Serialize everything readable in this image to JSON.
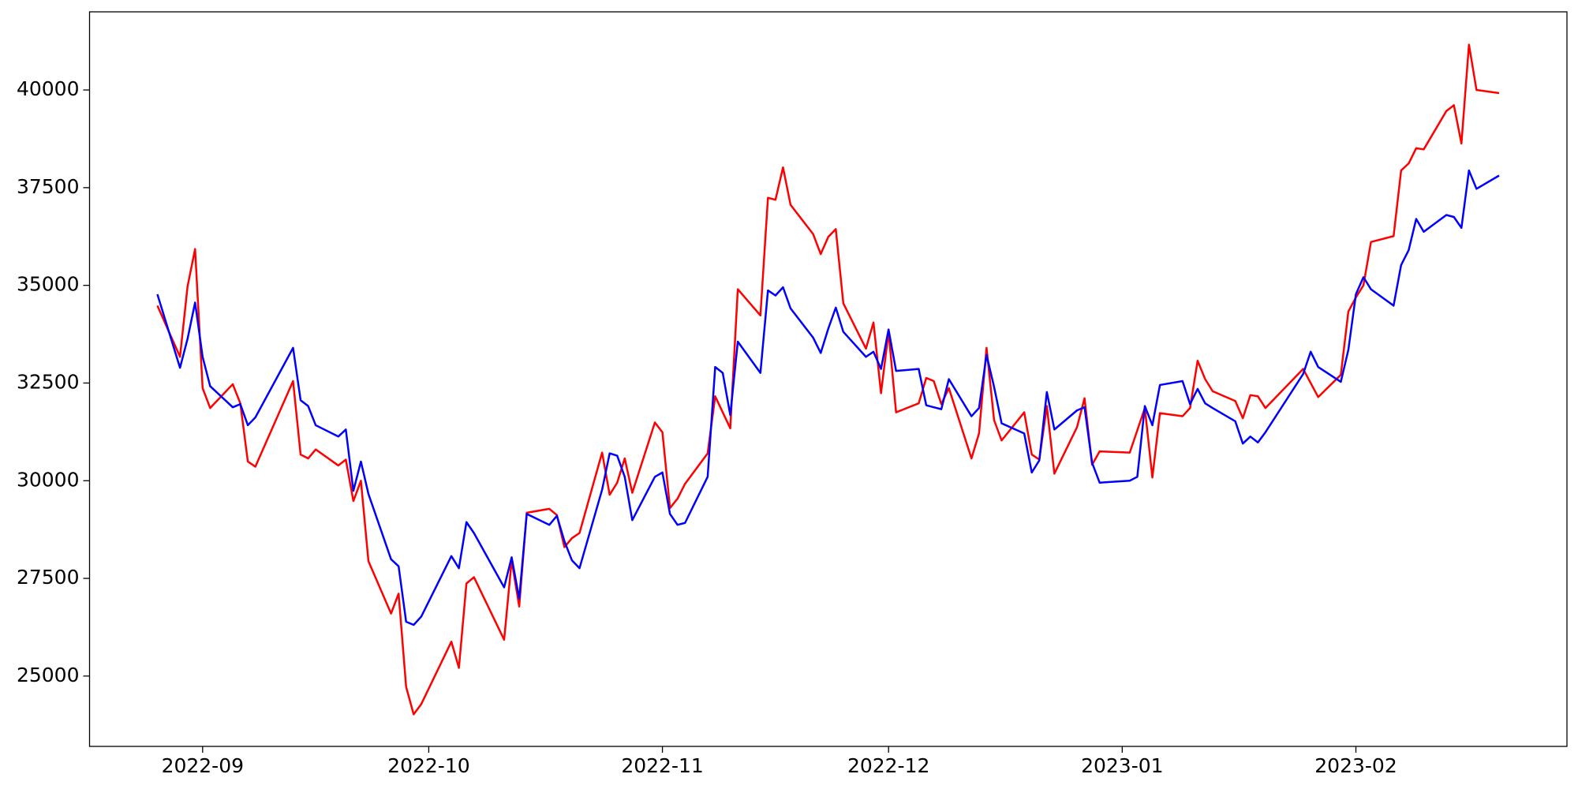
{
  "chart_data": {
    "type": "line",
    "x": [
      -6,
      -3,
      -2,
      -1,
      0,
      1,
      4,
      5,
      6,
      7,
      12,
      13,
      14,
      15,
      18,
      19,
      20,
      21,
      22,
      25,
      26,
      27,
      28,
      29,
      33,
      34,
      35,
      36,
      40,
      41,
      42,
      43,
      46,
      47,
      48,
      49,
      50,
      53,
      54,
      55,
      56,
      57,
      60,
      61,
      62,
      63,
      64,
      67,
      68,
      69,
      70,
      71,
      74,
      75,
      76,
      77,
      78,
      81,
      82,
      83,
      84,
      85,
      88,
      89,
      90,
      91,
      92,
      95,
      96,
      97,
      98,
      99,
      102,
      103,
      104,
      105,
      106,
      109,
      110,
      111,
      112,
      113,
      116,
      117,
      118,
      119,
      123,
      124,
      125,
      126,
      127,
      130,
      131,
      132,
      133,
      134,
      137,
      138,
      139,
      140,
      141,
      146,
      147,
      148,
      151,
      152,
      153,
      154,
      155,
      158,
      159,
      160,
      161,
      162,
      165,
      166,
      167,
      168,
      169,
      172
    ],
    "series": [
      {
        "color": "#ff0000",
        "values": [
          34480,
          33170,
          34970,
          35930,
          32370,
          31860,
          32470,
          31980,
          30490,
          30360,
          32550,
          30670,
          30570,
          30800,
          30390,
          30540,
          29480,
          30000,
          27940,
          26600,
          27110,
          24720,
          24020,
          24280,
          25880,
          25210,
          27370,
          27530,
          25930,
          27960,
          26780,
          29180,
          29280,
          29120,
          28300,
          28530,
          28660,
          30720,
          29640,
          29950,
          30570,
          29690,
          31490,
          31240,
          29300,
          29540,
          29920,
          30700,
          32160,
          31750,
          31340,
          34900,
          34230,
          37240,
          37190,
          38020,
          37060,
          36310,
          35800,
          36240,
          36440,
          34540,
          33380,
          34050,
          32240,
          33810,
          31750,
          31980,
          32630,
          32550,
          31960,
          32370,
          30570,
          31210,
          33400,
          31550,
          31030,
          31750,
          30670,
          30540,
          31910,
          30180,
          31370,
          32110,
          30410,
          30750,
          30720,
          31290,
          31860,
          30080,
          31730,
          31650,
          31860,
          33070,
          32600,
          32290,
          32040,
          31600,
          32190,
          32160,
          31860,
          32860,
          32500,
          32140,
          32710,
          34330,
          34690,
          35000,
          36110,
          36260,
          37940,
          38120,
          38510,
          38480,
          39460,
          39610,
          38630,
          41160,
          40000,
          39920
        ]
      },
      {
        "color": "#0000ff",
        "values": [
          34770,
          32890,
          33630,
          34560,
          33170,
          32420,
          31880,
          31960,
          31420,
          31620,
          33400,
          32060,
          31910,
          31420,
          31130,
          31310,
          29740,
          30490,
          29660,
          27990,
          27810,
          26390,
          26310,
          26520,
          28070,
          27760,
          28940,
          28660,
          27270,
          28040,
          26980,
          29150,
          28870,
          29100,
          28450,
          27960,
          27760,
          29770,
          30700,
          30640,
          30100,
          28990,
          30100,
          30210,
          29150,
          28870,
          28920,
          30100,
          32910,
          32760,
          31680,
          33560,
          32760,
          34870,
          34740,
          34950,
          34410,
          33660,
          33270,
          33890,
          34430,
          33810,
          33170,
          33300,
          32860,
          33870,
          32810,
          32860,
          31930,
          31880,
          31830,
          32600,
          31650,
          31860,
          33220,
          32400,
          31470,
          31210,
          30210,
          30520,
          32270,
          31310,
          31800,
          31880,
          30460,
          29950,
          30000,
          30100,
          31910,
          31420,
          32450,
          32550,
          31960,
          32350,
          31980,
          31860,
          31520,
          30950,
          31130,
          30980,
          31240,
          32730,
          33300,
          32910,
          32530,
          33350,
          34770,
          35210,
          34900,
          34480,
          35520,
          35900,
          36700,
          36370,
          36800,
          36750,
          36470,
          37940,
          37470,
          37810
        ]
      }
    ],
    "xlim": [
      -15,
      181
    ],
    "xticks": [
      {
        "value": 0,
        "label": "2022-09"
      },
      {
        "value": 30,
        "label": "2022-10"
      },
      {
        "value": 61,
        "label": "2022-11"
      },
      {
        "value": 91,
        "label": "2022-12"
      },
      {
        "value": 122,
        "label": "2023-01"
      },
      {
        "value": 153,
        "label": "2023-02"
      }
    ],
    "ylim": [
      23200,
      42000
    ],
    "yticks": [
      25000,
      27500,
      30000,
      32500,
      35000,
      37500,
      40000
    ],
    "grid": false
  }
}
